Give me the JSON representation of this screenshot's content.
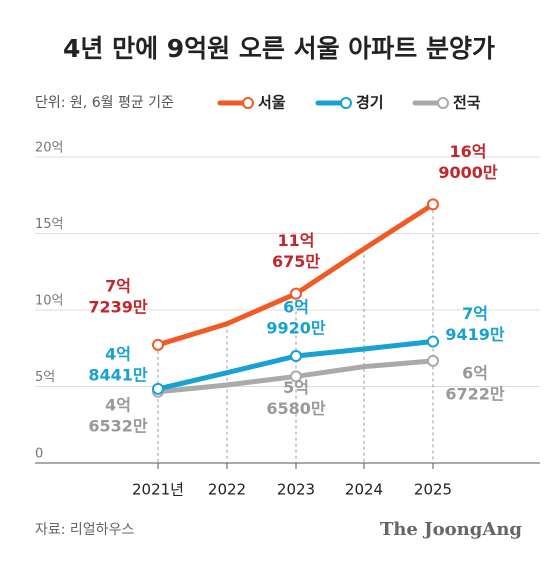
{
  "chart_data": {
    "type": "line",
    "title": "4년 만에 9억원 오른 서울 아파트 분양가",
    "subtitle": "단위: 원, 6월 평균 기준",
    "source": "자료: 리얼하우스",
    "logo": "The JoongAng",
    "categories": [
      "2021년",
      "2022",
      "2023",
      "2024",
      "2025"
    ],
    "ylim": [
      0,
      20
    ],
    "yticks": [
      0,
      {
        "value": 5,
        "label": "5억"
      },
      {
        "value": 10,
        "label": "10억"
      },
      {
        "value": 15,
        "label": "15억"
      },
      {
        "value": 20,
        "label": "20억"
      }
    ],
    "grid": true,
    "series": [
      {
        "name": "서울",
        "color": "#f15a24",
        "label_color": "#c1272d",
        "values": [
          7.7239,
          9.1,
          11.0675,
          14.0,
          16.9
        ],
        "value_labels": [
          [
            "7억",
            "7239만"
          ],
          null,
          [
            "11억",
            "675만"
          ],
          null,
          [
            "16억",
            "9000만"
          ]
        ]
      },
      {
        "name": "경기",
        "color": "#17a2d3",
        "label_color": "#17a2d3",
        "values": [
          4.8441,
          5.9,
          6.992,
          7.45,
          7.9419
        ],
        "value_labels": [
          [
            "4억",
            "8441만"
          ],
          null,
          [
            "6억",
            "9920만"
          ],
          null,
          [
            "7억",
            "9419만"
          ]
        ]
      },
      {
        "name": "전국",
        "color": "#aaaaaa",
        "label_color": "#999999",
        "values": [
          4.6532,
          5.1,
          5.658,
          6.3,
          6.6722
        ],
        "value_labels": [
          [
            "4억",
            "6532만"
          ],
          null,
          [
            "5억",
            "6580만"
          ],
          null,
          [
            "6억",
            "6722만"
          ]
        ]
      }
    ]
  }
}
